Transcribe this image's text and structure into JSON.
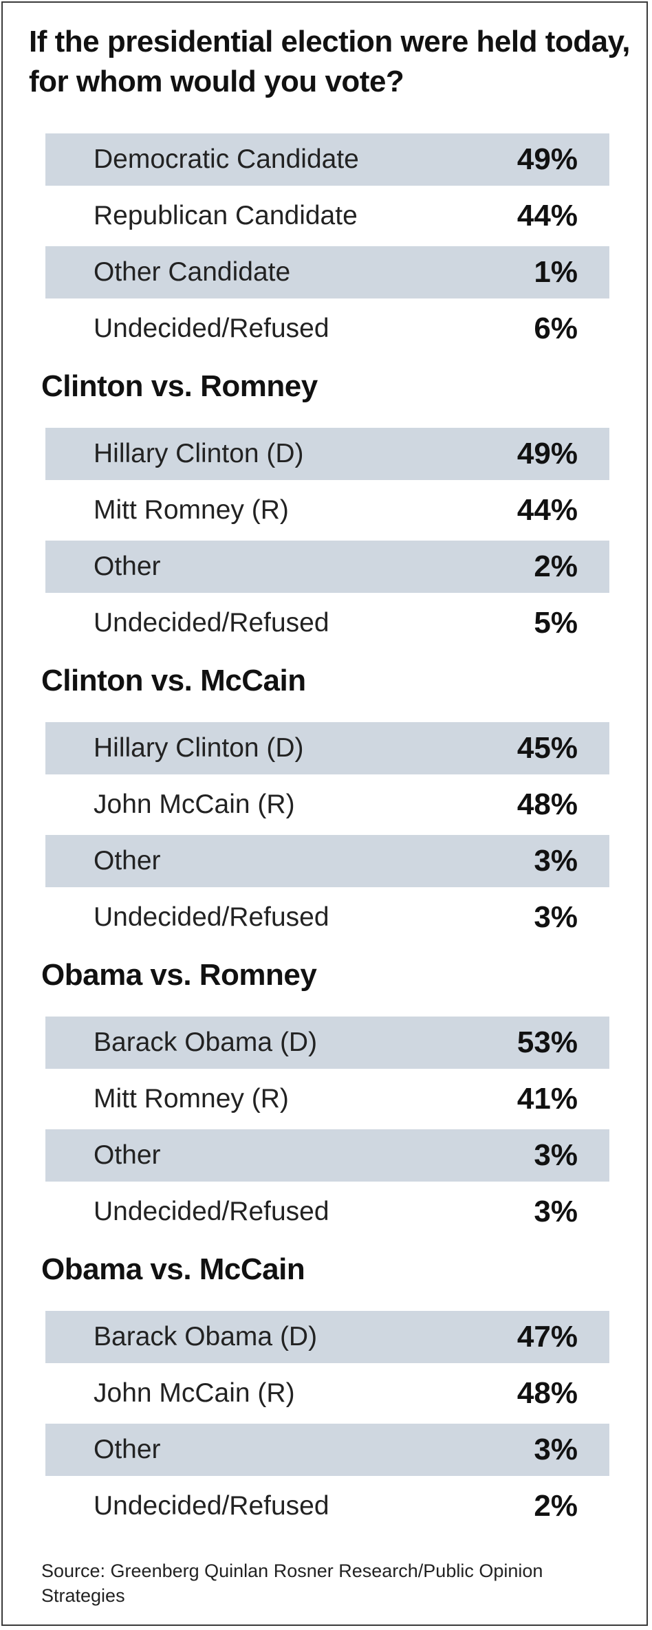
{
  "title": "If the presidential election were held today, for whom would you vote?",
  "source": "Source: Greenberg Quinlan Rosner Research/Public Opinion Strategies",
  "colors": {
    "shaded_row": "#cfd7e0",
    "border": "#3a3a3a"
  },
  "chart_data": {
    "type": "table",
    "title": "If the presidential election were held today, for whom would you vote?",
    "sections": [
      {
        "heading": "",
        "rows": [
          {
            "label": "Democratic Candidate",
            "value": "49%"
          },
          {
            "label": "Republican Candidate",
            "value": "44%"
          },
          {
            "label": "Other Candidate",
            "value": "1%"
          },
          {
            "label": "Undecided/Refused",
            "value": "6%"
          }
        ]
      },
      {
        "heading": "Clinton vs. Romney",
        "rows": [
          {
            "label": "Hillary Clinton (D)",
            "value": "49%"
          },
          {
            "label": "Mitt Romney (R)",
            "value": "44%"
          },
          {
            "label": "Other",
            "value": "2%"
          },
          {
            "label": "Undecided/Refused",
            "value": "5%"
          }
        ]
      },
      {
        "heading": "Clinton vs. McCain",
        "rows": [
          {
            "label": "Hillary Clinton (D)",
            "value": "45%"
          },
          {
            "label": "John McCain (R)",
            "value": "48%"
          },
          {
            "label": "Other",
            "value": "3%"
          },
          {
            "label": "Undecided/Refused",
            "value": "3%"
          }
        ]
      },
      {
        "heading": "Obama vs. Romney",
        "rows": [
          {
            "label": "Barack Obama (D)",
            "value": "53%"
          },
          {
            "label": "Mitt Romney (R)",
            "value": "41%"
          },
          {
            "label": "Other",
            "value": "3%"
          },
          {
            "label": "Undecided/Refused",
            "value": "3%"
          }
        ]
      },
      {
        "heading": "Obama vs. McCain",
        "rows": [
          {
            "label": "Barack Obama (D)",
            "value": "47%"
          },
          {
            "label": "John McCain (R)",
            "value": "48%"
          },
          {
            "label": "Other",
            "value": "3%"
          },
          {
            "label": "Undecided/Refused",
            "value": "2%"
          }
        ]
      }
    ]
  }
}
